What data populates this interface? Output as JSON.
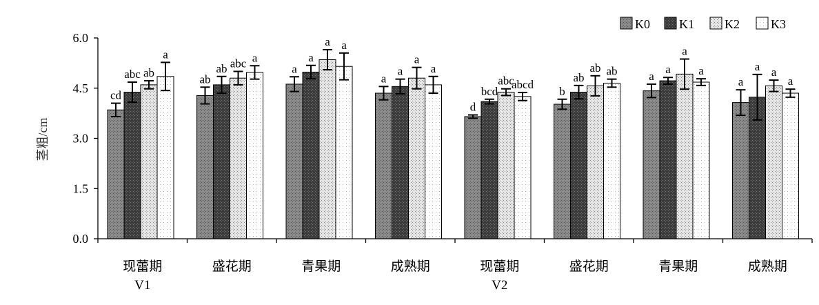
{
  "chart_data": {
    "type": "bar",
    "ylabel": "茎粗/cm",
    "ylim": [
      0,
      6
    ],
    "yticks": [
      "0.0",
      "1.5",
      "3.0",
      "4.5",
      "6.0"
    ],
    "grid": false,
    "legend_position": "top-right",
    "categories": [
      "现蕾期",
      "盛花期",
      "青果期",
      "成熟期",
      "现蕾期",
      "盛花期",
      "青果期",
      "成熟期"
    ],
    "groups": [
      {
        "label": "V1",
        "category_range": [
          0,
          3
        ]
      },
      {
        "label": "V2",
        "category_range": [
          4,
          7
        ]
      }
    ],
    "series": [
      {
        "name": "K0",
        "values": [
          3.85,
          4.28,
          4.62,
          4.35,
          3.65,
          4.02,
          4.42,
          4.07
        ],
        "errors": [
          0.2,
          0.25,
          0.22,
          0.2,
          0.05,
          0.15,
          0.2,
          0.38
        ],
        "sig": [
          "cd",
          "ab",
          "a",
          "a",
          "d",
          "b",
          "a",
          "a"
        ]
      },
      {
        "name": "K1",
        "values": [
          4.38,
          4.6,
          4.98,
          4.55,
          4.1,
          4.38,
          4.72,
          4.23
        ],
        "errors": [
          0.3,
          0.25,
          0.2,
          0.22,
          0.07,
          0.2,
          0.1,
          0.68
        ],
        "sig": [
          "abc",
          "ab",
          "a",
          "a",
          "bcd",
          "ab",
          "a",
          "a"
        ]
      },
      {
        "name": "K2",
        "values": [
          4.6,
          4.8,
          5.35,
          4.8,
          4.38,
          4.57,
          4.92,
          4.57
        ],
        "errors": [
          0.12,
          0.2,
          0.3,
          0.32,
          0.1,
          0.3,
          0.45,
          0.17
        ],
        "sig": [
          "ab",
          "abc",
          "a",
          "a",
          "abc",
          "ab",
          "a",
          "a"
        ]
      },
      {
        "name": "K3",
        "values": [
          4.85,
          4.97,
          5.15,
          4.6,
          4.25,
          4.65,
          4.68,
          4.35
        ],
        "errors": [
          0.42,
          0.2,
          0.4,
          0.25,
          0.12,
          0.12,
          0.1,
          0.12
        ],
        "sig": [
          "a",
          "a",
          "a",
          "a",
          "abcd",
          "ab",
          "a",
          "a"
        ]
      }
    ]
  },
  "colors": {
    "K0": "#808080",
    "K1": "#404040",
    "K2": "#d6d6d6",
    "K3": "#ffffff",
    "axis": "#000000"
  }
}
